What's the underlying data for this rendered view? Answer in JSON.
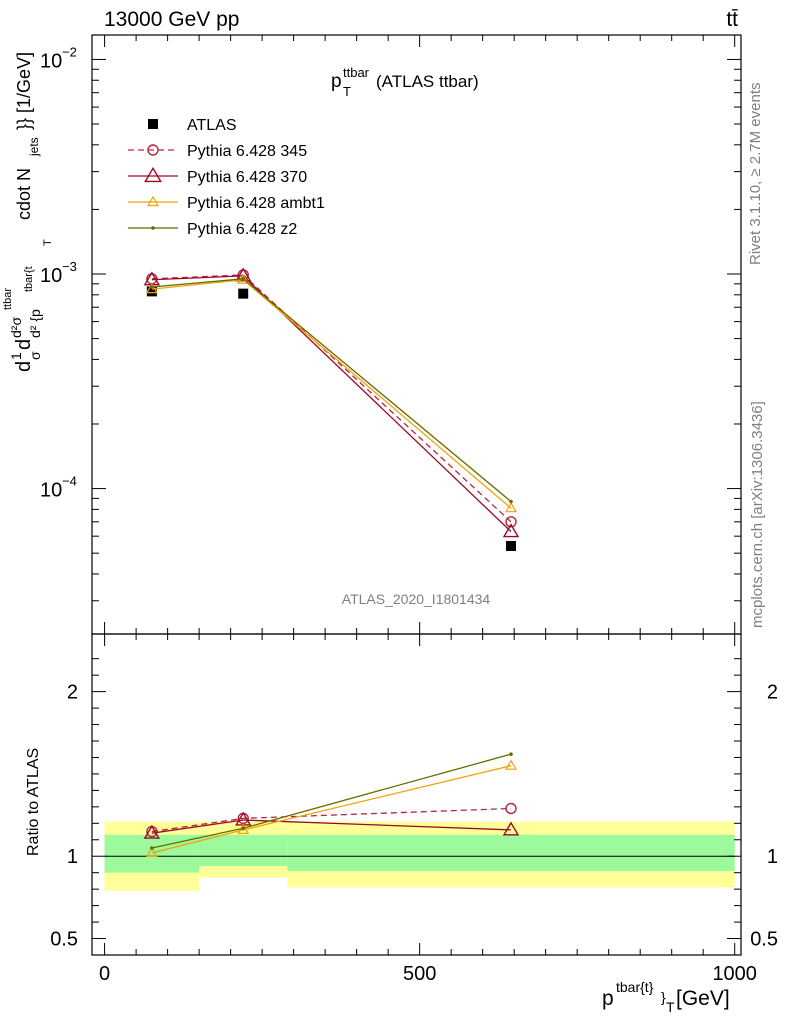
{
  "header": {
    "left": "13000 GeV pp",
    "right": "tt̄"
  },
  "side_text": {
    "rivet": "Rivet 3.1.10, ≥ 2.7M events",
    "mcplots": "mcplots.cern.ch [arXiv:1306.3436]"
  },
  "watermark": "ATLAS_2020_I1801434",
  "colors": {
    "atlas": "#000000",
    "p345": "#b2263f",
    "p370": "#9a0a27",
    "ambt1": "#f0a30a",
    "z2": "#6b6b00",
    "band_inner": "#9cf99c",
    "band_outer": "#ffff99"
  },
  "chart_data": [
    {
      "type": "line",
      "title_main": "p",
      "title_sub": "T",
      "title_sup": "ttbar",
      "title_rest": " (ATLAS ttbar)",
      "ylabel": "d²σ/d{p_T^tbar{t}} cdot N_jets [1/GeV]",
      "ylabel_parts": {
        "part1": "d",
        "part2": "1",
        "part3": "σ",
        "part4": "d",
        "part5": "d²σ",
        "part6": "ttbar",
        "part7": "d² {p",
        "part8": "tbar{t",
        "part9": "T",
        "part10": "cdot N",
        "part11": "jets",
        "part12": "}} [1/GeV]"
      },
      "yscale": "log",
      "ylim": [
        2.1e-05,
        0.013
      ],
      "xlim": [
        -20,
        1010
      ],
      "yticks": [
        {
          "value": 0.01,
          "base": "10",
          "exp": "−2"
        },
        {
          "value": 0.001,
          "base": "10",
          "exp": "−3"
        },
        {
          "value": 0.0001,
          "base": "10",
          "exp": "−4"
        }
      ],
      "legend": {
        "placement": "top-left",
        "entries": [
          "ATLAS",
          "Pythia 6.428 345",
          "Pythia 6.428 370",
          "Pythia 6.428 ambt1",
          "Pythia 6.428 z2"
        ]
      },
      "bins": [
        [
          0,
          150
        ],
        [
          150,
          290
        ],
        [
          290,
          1000
        ]
      ],
      "series": [
        {
          "name": "ATLAS",
          "key": "atlas",
          "x": [
            75,
            220,
            645
          ],
          "y": [
            0.00083,
            0.00081,
            5.4e-05
          ]
        },
        {
          "name": "Pythia 6.428 345",
          "key": "p345",
          "x": [
            75,
            220,
            645
          ],
          "y": [
            0.00095,
            0.00099,
            7e-05
          ]
        },
        {
          "name": "Pythia 6.428 370",
          "key": "p370",
          "x": [
            75,
            220,
            645
          ],
          "y": [
            0.00094,
            0.00098,
            6.3e-05
          ]
        },
        {
          "name": "Pythia 6.428 ambt1",
          "key": "ambt1",
          "x": [
            75,
            220,
            645
          ],
          "y": [
            0.00085,
            0.00094,
            8.1e-05
          ]
        },
        {
          "name": "Pythia 6.428 z2",
          "key": "z2",
          "x": [
            75,
            220,
            645
          ],
          "y": [
            0.00087,
            0.00095,
            8.7e-05
          ]
        }
      ]
    },
    {
      "type": "line",
      "ylabel": "Ratio to ATLAS",
      "xlabel_main": "p",
      "xlabel_sup": "tbar{t}",
      "xlabel_sub": "}",
      "xlabel_sub2": "T",
      "xlabel_units": " [GeV]",
      "ylim": [
        0.4,
        2.35
      ],
      "xlim": [
        -20,
        1010
      ],
      "yticks": [
        "0.5",
        "1",
        "2"
      ],
      "xticks": [
        "0",
        "500",
        "1000"
      ],
      "bands": [
        {
          "x": [
            0,
            150
          ],
          "inner": [
            0.9,
            1.13
          ],
          "outer": [
            0.79,
            1.21
          ]
        },
        {
          "x": [
            150,
            290
          ],
          "inner": [
            0.94,
            1.13
          ],
          "outer": [
            0.87,
            1.21
          ]
        },
        {
          "x": [
            290,
            1000
          ],
          "inner": [
            0.91,
            1.13
          ],
          "outer": [
            0.81,
            1.21
          ]
        }
      ],
      "series": [
        {
          "name": "Pythia 6.428 345",
          "key": "p345",
          "x": [
            75,
            220,
            645
          ],
          "y": [
            1.15,
            1.23,
            1.29
          ]
        },
        {
          "name": "Pythia 6.428 370",
          "key": "p370",
          "x": [
            75,
            220,
            645
          ],
          "y": [
            1.14,
            1.22,
            1.16
          ]
        },
        {
          "name": "Pythia 6.428 ambt1",
          "key": "ambt1",
          "x": [
            75,
            220,
            645
          ],
          "y": [
            1.02,
            1.16,
            1.55
          ]
        },
        {
          "name": "Pythia 6.428 z2",
          "key": "z2",
          "x": [
            75,
            220,
            645
          ],
          "y": [
            1.05,
            1.17,
            1.62
          ]
        }
      ]
    }
  ]
}
